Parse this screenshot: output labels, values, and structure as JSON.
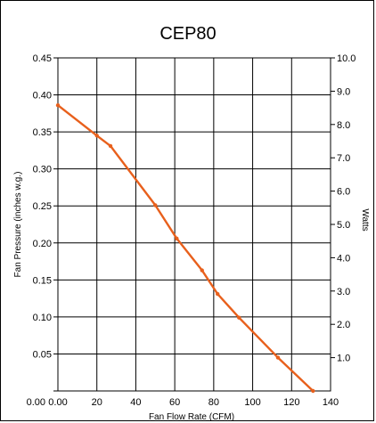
{
  "chart_data": {
    "type": "line",
    "title": "CEP80",
    "xlabel": "Fan Flow Rate (CFM)",
    "ylabel": "Fan Pressure (inches w.g.)",
    "y2label": "Watts",
    "xlim": [
      0,
      140
    ],
    "ylim": [
      0,
      0.45
    ],
    "y2lim": [
      0,
      10
    ],
    "xticks": [
      "0.00",
      "20",
      "40",
      "60",
      "80",
      "100",
      "120",
      "140"
    ],
    "xtick_values": [
      0,
      20,
      40,
      60,
      80,
      100,
      120,
      140
    ],
    "yticks": [
      "0.00",
      "0.05",
      "0.10",
      "0.15",
      "0.20",
      "0.25",
      "0.30",
      "0.35",
      "0.40",
      "0.45"
    ],
    "ytick_values": [
      0,
      0.05,
      0.1,
      0.15,
      0.2,
      0.25,
      0.3,
      0.35,
      0.4,
      0.45
    ],
    "y2ticks": [
      "1.0",
      "2.0",
      "3.0",
      "4.0",
      "5.0",
      "6.0",
      "7.0",
      "8.0",
      "9.0",
      "10.0"
    ],
    "y2tick_values": [
      1,
      2,
      3,
      4,
      5,
      6,
      7,
      8,
      9,
      10
    ],
    "grid": true,
    "line_color": "#e8601c",
    "series": [
      {
        "x": [
          0,
          20,
          27,
          50,
          61,
          74,
          82,
          93,
          113,
          131
        ],
        "y": [
          0.386,
          0.345,
          0.331,
          0.251,
          0.206,
          0.163,
          0.131,
          0.099,
          0.045,
          0.0
        ]
      }
    ]
  }
}
